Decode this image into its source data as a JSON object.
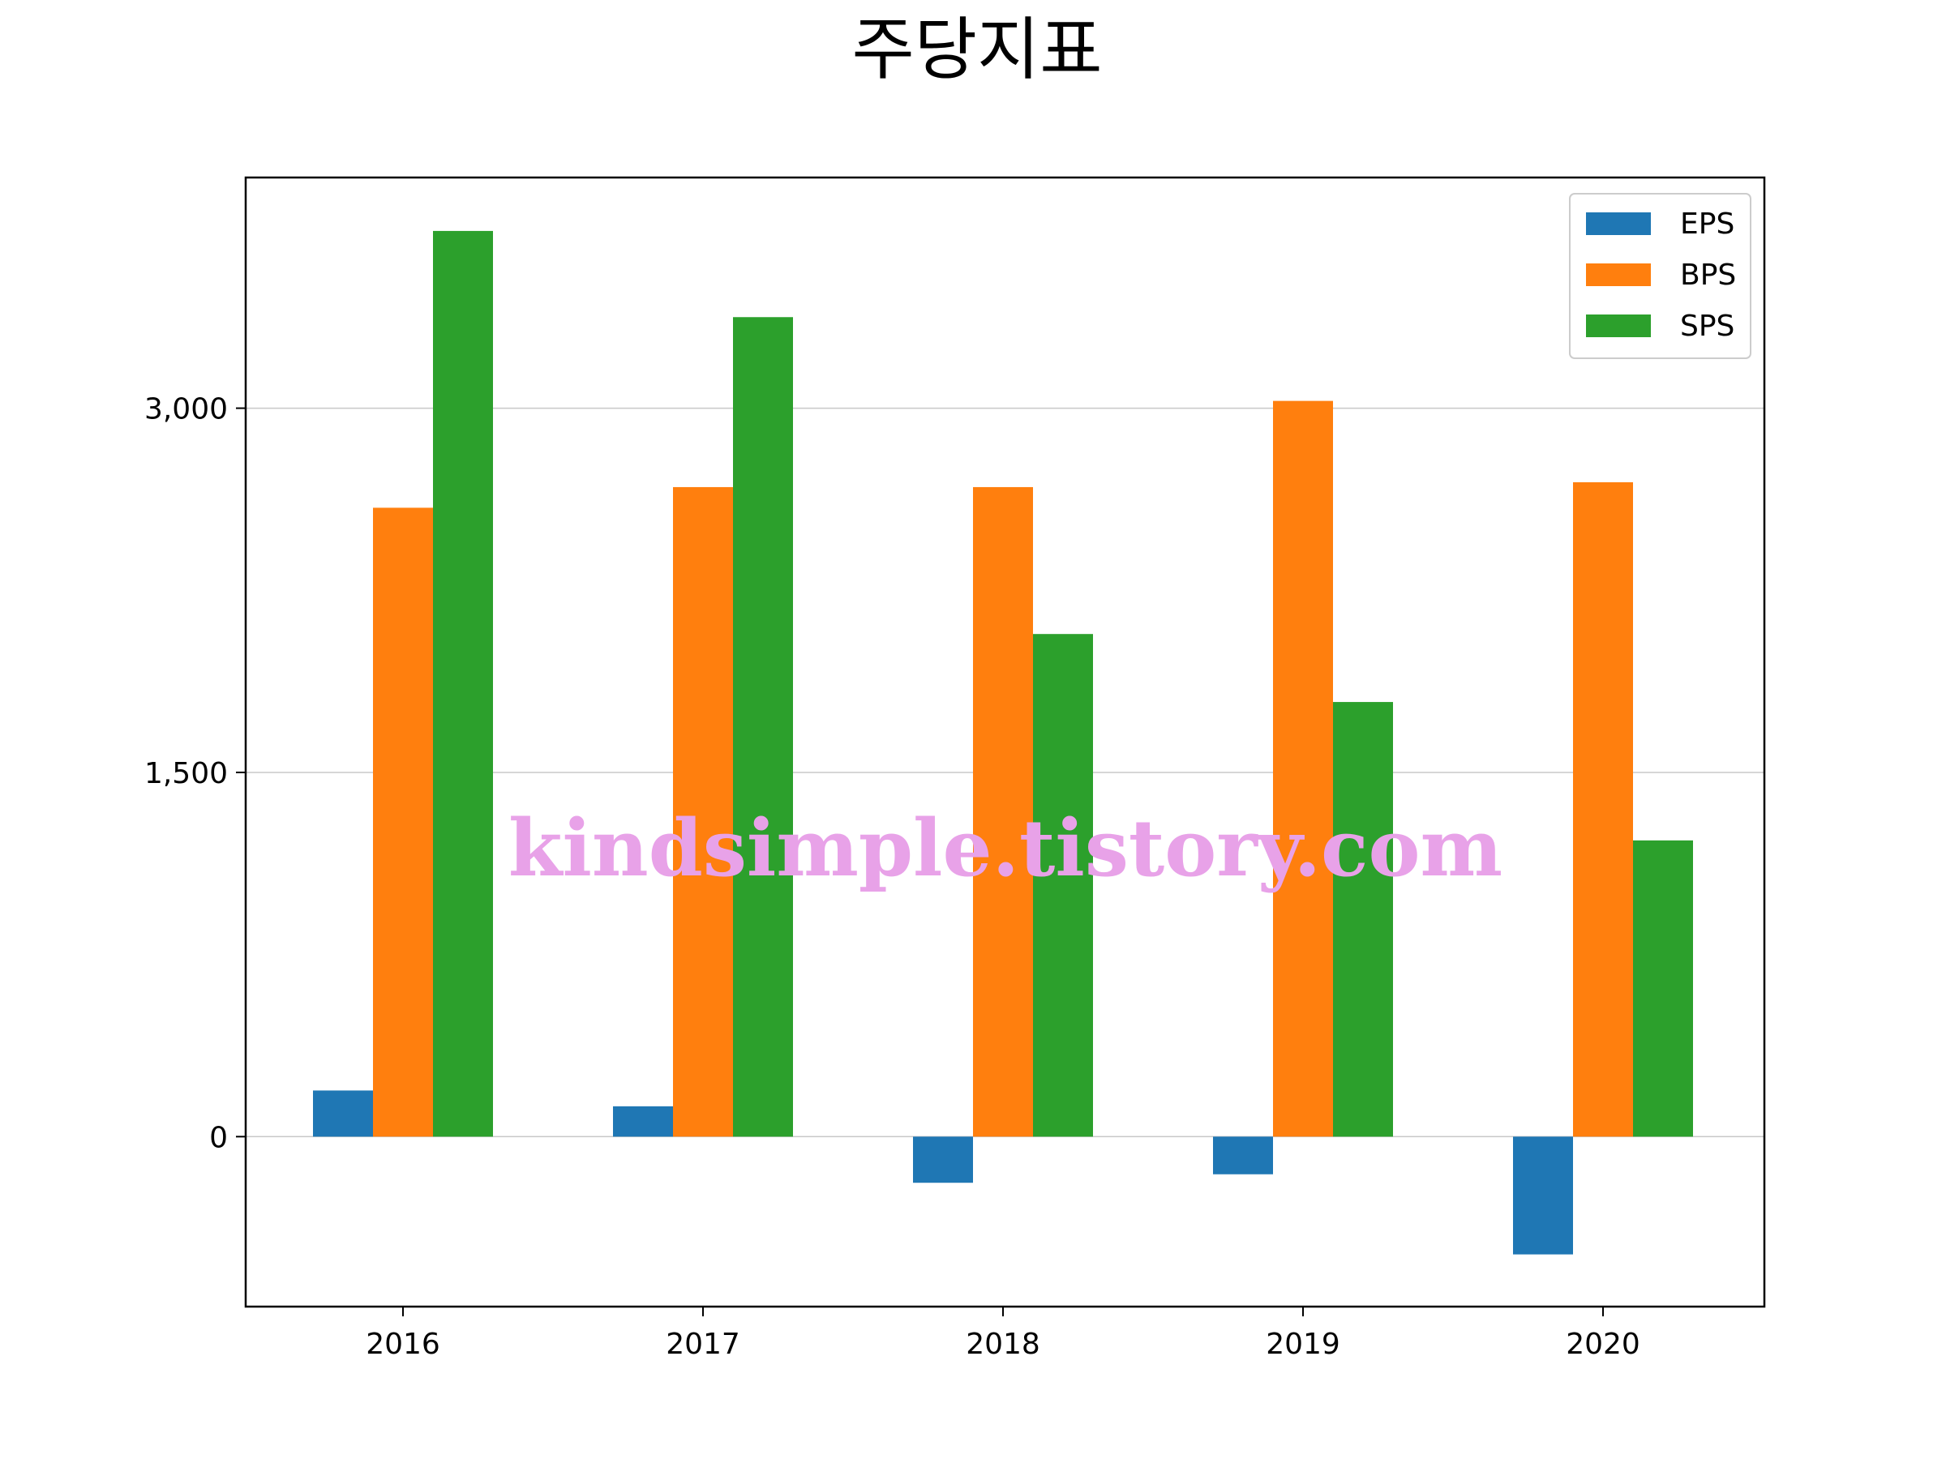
{
  "chart_data": {
    "type": "bar",
    "title": "주당지표",
    "xlabel": "",
    "ylabel": "",
    "categories": [
      "2016",
      "2017",
      "2018",
      "2019",
      "2020"
    ],
    "series": [
      {
        "name": "EPS",
        "color": "#1f77b4",
        "values": [
          190,
          125,
          -190,
          -155,
          -485
        ]
      },
      {
        "name": "BPS",
        "color": "#ff7f0e",
        "values": [
          2590,
          2675,
          2675,
          3030,
          2695
        ]
      },
      {
        "name": "SPS",
        "color": "#2ca02c",
        "values": [
          3730,
          3375,
          2070,
          1790,
          1220
        ]
      }
    ],
    "ylim": [
      -700,
      3950
    ],
    "yticks": [
      0,
      1500,
      3000
    ],
    "ytick_labels": [
      "0",
      "1,500",
      "3,000"
    ],
    "grid": "y",
    "legend_position": "upper right"
  },
  "watermark": {
    "text": "kindsimple.tistory.com",
    "color": "#e8a2e8"
  }
}
